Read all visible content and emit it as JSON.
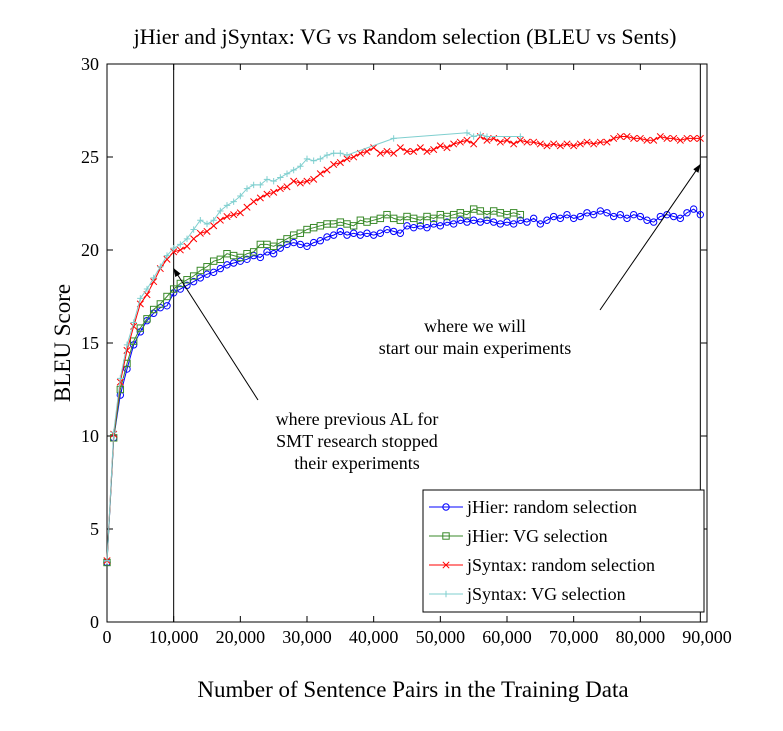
{
  "chart_data": {
    "type": "line",
    "title": "jHier and jSyntax: VG vs Random selection (BLEU vs Sents)",
    "xlabel": "Number of Sentence Pairs in the Training Data",
    "ylabel": "BLEU Score",
    "xlim": [
      0,
      90000
    ],
    "ylim": [
      0,
      30
    ],
    "x_ticks": [
      "0",
      "10,000",
      "20,000",
      "30,000",
      "40,000",
      "50,000",
      "60,000",
      "70,000",
      "80,000",
      "90,000"
    ],
    "y_ticks": [
      "0",
      "5",
      "10",
      "15",
      "20",
      "25",
      "30"
    ],
    "grid": false,
    "legend_position": "bottom-right",
    "vertical_lines": [
      10000,
      89000
    ],
    "annotations": [
      {
        "lines": [
          "where previous AL for",
          "SMT research stopped",
          "their experiments"
        ],
        "arrow_to": [
          10000,
          19
        ]
      },
      {
        "lines": [
          "where we will",
          "start our main experiments"
        ],
        "arrow_to": [
          89000,
          24.6
        ]
      }
    ],
    "series": [
      {
        "name": "jHier: random selection",
        "color": "#0000ff",
        "marker": "circle",
        "points": [
          [
            0,
            3.2
          ],
          [
            1000,
            9.9
          ],
          [
            2000,
            12.2
          ],
          [
            3000,
            13.6
          ],
          [
            4000,
            14.9
          ],
          [
            5000,
            15.6
          ],
          [
            6000,
            16.2
          ],
          [
            7000,
            16.6
          ],
          [
            8000,
            16.9
          ],
          [
            9000,
            17.0
          ],
          [
            10000,
            17.7
          ],
          [
            11000,
            17.9
          ],
          [
            12000,
            18.1
          ],
          [
            13000,
            18.3
          ],
          [
            14000,
            18.5
          ],
          [
            15000,
            18.7
          ],
          [
            16000,
            18.8
          ],
          [
            17000,
            19.0
          ],
          [
            18000,
            19.2
          ],
          [
            19000,
            19.3
          ],
          [
            20000,
            19.4
          ],
          [
            21000,
            19.5
          ],
          [
            22000,
            19.7
          ],
          [
            23000,
            19.6
          ],
          [
            24000,
            19.9
          ],
          [
            25000,
            19.8
          ],
          [
            26000,
            20.1
          ],
          [
            27000,
            20.3
          ],
          [
            28000,
            20.4
          ],
          [
            29000,
            20.3
          ],
          [
            30000,
            20.2
          ],
          [
            31000,
            20.4
          ],
          [
            32000,
            20.5
          ],
          [
            33000,
            20.7
          ],
          [
            34000,
            20.8
          ],
          [
            35000,
            21.0
          ],
          [
            36000,
            20.8
          ],
          [
            37000,
            20.9
          ],
          [
            38000,
            20.8
          ],
          [
            39000,
            20.9
          ],
          [
            40000,
            20.8
          ],
          [
            41000,
            20.9
          ],
          [
            42000,
            21.1
          ],
          [
            43000,
            21.0
          ],
          [
            44000,
            20.9
          ],
          [
            45000,
            21.3
          ],
          [
            46000,
            21.2
          ],
          [
            47000,
            21.3
          ],
          [
            48000,
            21.2
          ],
          [
            49000,
            21.4
          ],
          [
            50000,
            21.3
          ],
          [
            51000,
            21.5
          ],
          [
            52000,
            21.4
          ],
          [
            53000,
            21.6
          ],
          [
            54000,
            21.5
          ],
          [
            55000,
            21.6
          ],
          [
            56000,
            21.5
          ],
          [
            57000,
            21.6
          ],
          [
            58000,
            21.5
          ],
          [
            59000,
            21.4
          ],
          [
            60000,
            21.5
          ],
          [
            61000,
            21.4
          ],
          [
            62000,
            21.6
          ],
          [
            63000,
            21.5
          ],
          [
            64000,
            21.7
          ],
          [
            65000,
            21.4
          ],
          [
            66000,
            21.6
          ],
          [
            67000,
            21.8
          ],
          [
            68000,
            21.7
          ],
          [
            69000,
            21.9
          ],
          [
            70000,
            21.7
          ],
          [
            71000,
            21.8
          ],
          [
            72000,
            22.0
          ],
          [
            73000,
            21.9
          ],
          [
            74000,
            22.1
          ],
          [
            75000,
            22.0
          ],
          [
            76000,
            21.8
          ],
          [
            77000,
            21.9
          ],
          [
            78000,
            21.7
          ],
          [
            79000,
            21.9
          ],
          [
            80000,
            21.8
          ],
          [
            81000,
            21.6
          ],
          [
            82000,
            21.5
          ],
          [
            83000,
            21.8
          ],
          [
            84000,
            21.9
          ],
          [
            85000,
            21.8
          ],
          [
            86000,
            21.7
          ],
          [
            87000,
            22.0
          ],
          [
            88000,
            22.2
          ],
          [
            89000,
            21.9
          ]
        ]
      },
      {
        "name": "jHier: VG selection",
        "color": "#3a8a2a",
        "marker": "square",
        "points": [
          [
            0,
            3.2
          ],
          [
            1000,
            9.9
          ],
          [
            2000,
            12.5
          ],
          [
            3000,
            13.9
          ],
          [
            4000,
            15.1
          ],
          [
            5000,
            15.8
          ],
          [
            6000,
            16.3
          ],
          [
            7000,
            16.8
          ],
          [
            8000,
            17.1
          ],
          [
            9000,
            17.5
          ],
          [
            10000,
            17.9
          ],
          [
            11000,
            18.2
          ],
          [
            12000,
            18.4
          ],
          [
            13000,
            18.6
          ],
          [
            14000,
            18.9
          ],
          [
            15000,
            19.1
          ],
          [
            16000,
            19.4
          ],
          [
            17000,
            19.5
          ],
          [
            18000,
            19.8
          ],
          [
            19000,
            19.7
          ],
          [
            20000,
            19.6
          ],
          [
            21000,
            19.8
          ],
          [
            22000,
            19.9
          ],
          [
            23000,
            20.3
          ],
          [
            24000,
            20.3
          ],
          [
            25000,
            20.2
          ],
          [
            26000,
            20.4
          ],
          [
            27000,
            20.6
          ],
          [
            28000,
            20.8
          ],
          [
            29000,
            20.9
          ],
          [
            30000,
            21.1
          ],
          [
            31000,
            21.2
          ],
          [
            32000,
            21.3
          ],
          [
            33000,
            21.4
          ],
          [
            34000,
            21.4
          ],
          [
            35000,
            21.5
          ],
          [
            36000,
            21.4
          ],
          [
            37000,
            21.3
          ],
          [
            38000,
            21.6
          ],
          [
            39000,
            21.5
          ],
          [
            40000,
            21.6
          ],
          [
            41000,
            21.7
          ],
          [
            42000,
            21.9
          ],
          [
            43000,
            21.7
          ],
          [
            44000,
            21.6
          ],
          [
            45000,
            21.8
          ],
          [
            46000,
            21.7
          ],
          [
            47000,
            21.6
          ],
          [
            48000,
            21.8
          ],
          [
            49000,
            21.7
          ],
          [
            50000,
            21.9
          ],
          [
            51000,
            21.8
          ],
          [
            52000,
            21.9
          ],
          [
            53000,
            22.0
          ],
          [
            54000,
            21.9
          ],
          [
            55000,
            22.2
          ],
          [
            56000,
            22.1
          ],
          [
            57000,
            21.9
          ],
          [
            58000,
            22.1
          ],
          [
            59000,
            22.0
          ],
          [
            60000,
            21.9
          ],
          [
            61000,
            22.0
          ],
          [
            62000,
            21.9
          ]
        ]
      },
      {
        "name": "jSyntax: random selection",
        "color": "#ff0000",
        "marker": "cross",
        "points": [
          [
            0,
            3.3
          ],
          [
            1000,
            10.1
          ],
          [
            2000,
            12.9
          ],
          [
            3000,
            14.6
          ],
          [
            4000,
            15.9
          ],
          [
            5000,
            17.1
          ],
          [
            6000,
            17.6
          ],
          [
            7000,
            18.3
          ],
          [
            8000,
            19.0
          ],
          [
            9000,
            19.5
          ],
          [
            10000,
            19.9
          ],
          [
            11000,
            20.0
          ],
          [
            12000,
            20.2
          ],
          [
            13000,
            20.6
          ],
          [
            14000,
            20.9
          ],
          [
            15000,
            21.0
          ],
          [
            16000,
            21.3
          ],
          [
            17000,
            21.6
          ],
          [
            18000,
            21.8
          ],
          [
            19000,
            21.9
          ],
          [
            20000,
            22.0
          ],
          [
            21000,
            22.3
          ],
          [
            22000,
            22.6
          ],
          [
            23000,
            22.8
          ],
          [
            24000,
            23.0
          ],
          [
            25000,
            23.1
          ],
          [
            26000,
            23.3
          ],
          [
            27000,
            23.4
          ],
          [
            28000,
            23.7
          ],
          [
            29000,
            23.6
          ],
          [
            30000,
            23.7
          ],
          [
            31000,
            23.8
          ],
          [
            32000,
            24.1
          ],
          [
            33000,
            24.3
          ],
          [
            34000,
            24.6
          ],
          [
            35000,
            24.7
          ],
          [
            36000,
            24.9
          ],
          [
            37000,
            25.0
          ],
          [
            38000,
            25.2
          ],
          [
            39000,
            25.3
          ],
          [
            40000,
            25.5
          ],
          [
            41000,
            25.2
          ],
          [
            42000,
            25.3
          ],
          [
            43000,
            25.2
          ],
          [
            44000,
            25.5
          ],
          [
            45000,
            25.3
          ],
          [
            46000,
            25.3
          ],
          [
            47000,
            25.5
          ],
          [
            48000,
            25.3
          ],
          [
            49000,
            25.4
          ],
          [
            50000,
            25.6
          ],
          [
            51000,
            25.5
          ],
          [
            52000,
            25.7
          ],
          [
            53000,
            25.8
          ],
          [
            54000,
            25.9
          ],
          [
            55000,
            25.7
          ],
          [
            56000,
            26.1
          ],
          [
            57000,
            25.9
          ],
          [
            58000,
            26.0
          ],
          [
            59000,
            25.8
          ],
          [
            60000,
            25.9
          ],
          [
            61000,
            25.7
          ],
          [
            62000,
            25.9
          ],
          [
            63000,
            25.8
          ],
          [
            64000,
            25.8
          ],
          [
            65000,
            25.7
          ],
          [
            66000,
            25.6
          ],
          [
            67000,
            25.7
          ],
          [
            68000,
            25.6
          ],
          [
            69000,
            25.7
          ],
          [
            70000,
            25.6
          ],
          [
            71000,
            25.7
          ],
          [
            72000,
            25.8
          ],
          [
            73000,
            25.7
          ],
          [
            74000,
            25.8
          ],
          [
            75000,
            25.8
          ],
          [
            76000,
            26.0
          ],
          [
            77000,
            26.1
          ],
          [
            78000,
            26.1
          ],
          [
            79000,
            26.0
          ],
          [
            80000,
            26.0
          ],
          [
            81000,
            25.9
          ],
          [
            82000,
            25.9
          ],
          [
            83000,
            26.1
          ],
          [
            84000,
            26.0
          ],
          [
            85000,
            26.0
          ],
          [
            86000,
            25.9
          ],
          [
            87000,
            26.0
          ],
          [
            88000,
            26.0
          ],
          [
            89000,
            26.0
          ]
        ]
      },
      {
        "name": "jSyntax: VG selection",
        "color": "#7fcfcf",
        "marker": "plus",
        "points": [
          [
            0,
            3.3
          ],
          [
            1000,
            10.2
          ],
          [
            2000,
            13.1
          ],
          [
            3000,
            14.9
          ],
          [
            4000,
            16.1
          ],
          [
            5000,
            17.4
          ],
          [
            6000,
            17.9
          ],
          [
            7000,
            18.5
          ],
          [
            8000,
            19.1
          ],
          [
            9000,
            19.7
          ],
          [
            10000,
            20.1
          ],
          [
            11000,
            20.3
          ],
          [
            12000,
            20.6
          ],
          [
            13000,
            21.1
          ],
          [
            14000,
            21.6
          ],
          [
            15000,
            21.4
          ],
          [
            16000,
            21.6
          ],
          [
            17000,
            22.1
          ],
          [
            18000,
            22.4
          ],
          [
            19000,
            22.6
          ],
          [
            20000,
            22.9
          ],
          [
            21000,
            23.3
          ],
          [
            22000,
            23.5
          ],
          [
            23000,
            23.5
          ],
          [
            24000,
            23.8
          ],
          [
            25000,
            23.7
          ],
          [
            26000,
            23.9
          ],
          [
            27000,
            24.1
          ],
          [
            28000,
            24.3
          ],
          [
            29000,
            24.5
          ],
          [
            30000,
            24.9
          ],
          [
            31000,
            24.8
          ],
          [
            32000,
            24.9
          ],
          [
            33000,
            25.1
          ],
          [
            34000,
            25.2
          ],
          [
            35000,
            25.2
          ],
          [
            36000,
            25.1
          ],
          [
            43000,
            26.0
          ],
          [
            54000,
            26.3
          ],
          [
            55000,
            26.1
          ],
          [
            56000,
            26.2
          ],
          [
            57000,
            26.1
          ],
          [
            62000,
            26.1
          ]
        ]
      }
    ]
  }
}
